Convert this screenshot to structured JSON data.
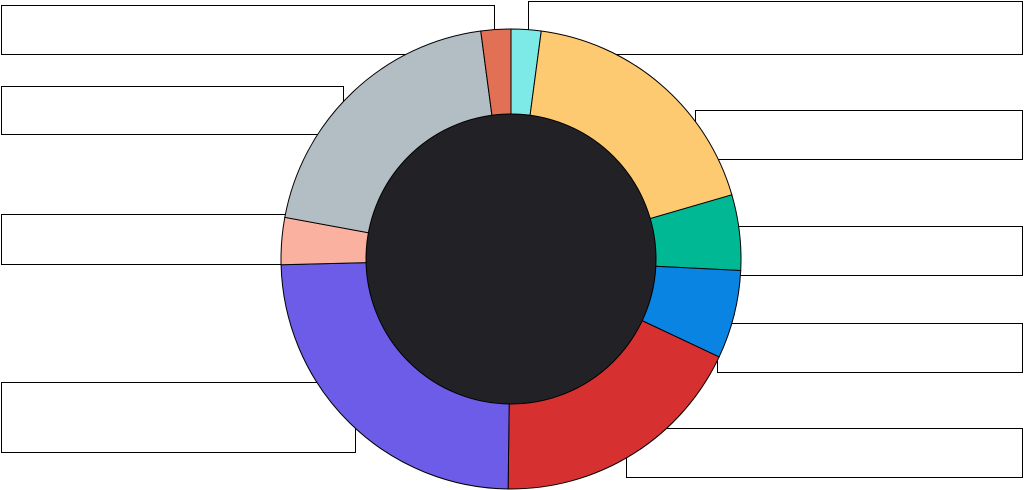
{
  "chart_data": {
    "type": "pie",
    "title": "",
    "donut": true,
    "center_color": "#222226",
    "slices": [
      {
        "label": "",
        "value": 2.1,
        "color": "#7EEAE8"
      },
      {
        "label": "",
        "value": 18.4,
        "color": "#FDCA72"
      },
      {
        "label": "",
        "value": 5.3,
        "color": "#00B894"
      },
      {
        "label": "",
        "value": 6.2,
        "color": "#0984E3"
      },
      {
        "label": "",
        "value": 18.2,
        "color": "#D63031"
      },
      {
        "label": "",
        "value": 24.4,
        "color": "#6C5CE7"
      },
      {
        "label": "",
        "value": 3.3,
        "color": "#FAB1A0"
      },
      {
        "label": "",
        "value": 20.0,
        "color": "#B2BEC3"
      },
      {
        "label": "",
        "value": 2.1,
        "color": "#E17055"
      }
    ]
  }
}
